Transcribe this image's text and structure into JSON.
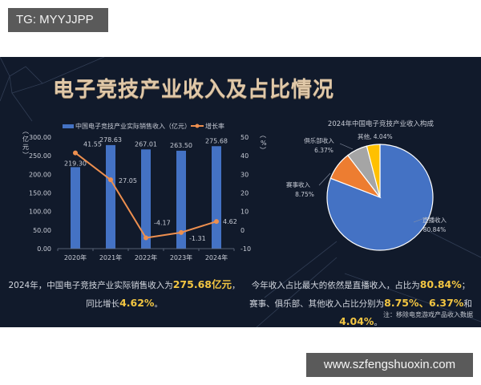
{
  "watermarks": {
    "top": "TG: MYYJJPP",
    "bottom": "www.szfengshuoxin.com"
  },
  "title": "电子竞技产业收入及占比情况",
  "colors": {
    "background": "#111a2b",
    "bar": "#4472c4",
    "line": "#ed8f4f",
    "title": "#e0c8a8",
    "highlight": "#f3c642",
    "pie_live": "#4472c4",
    "pie_event": "#ed7d31",
    "pie_club": "#a5a5a5",
    "pie_other": "#ffc000"
  },
  "chart_data": [
    {
      "type": "bar",
      "title": "",
      "categories": [
        "2020年",
        "2021年",
        "2022年",
        "2023年",
        "2024年"
      ],
      "series": [
        {
          "name": "中国电子竞技产业实际销售收入（亿元）",
          "type": "bar",
          "axis": "left",
          "values": [
            219.3,
            278.63,
            267.01,
            263.5,
            275.68
          ],
          "labels": [
            "219.30",
            "278.63",
            "267.01",
            "263.50",
            "275.68"
          ]
        },
        {
          "name": "增长率",
          "type": "line",
          "axis": "right",
          "values": [
            41.55,
            27.05,
            -4.17,
            -1.31,
            4.62
          ],
          "labels": [
            "41.55",
            "27.05",
            "-4.17",
            "-1.31",
            "4.62"
          ]
        }
      ],
      "ylabel": "（亿元）",
      "y2label": "（%）",
      "ylim": [
        0,
        300
      ],
      "y2lim": [
        -10,
        50
      ],
      "yticks": [
        "0.00",
        "50.00",
        "100.00",
        "150.00",
        "200.00",
        "250.00",
        "300.00"
      ],
      "y2ticks": [
        "-10",
        "0",
        "10",
        "20",
        "30",
        "40",
        "50"
      ],
      "legend_position": "top",
      "grid": false
    },
    {
      "type": "pie",
      "title": "2024年中国电子竞技产业收入构成",
      "labels": [
        "直播收入",
        "赛事收入",
        "俱乐部收入",
        "其他"
      ],
      "values": [
        80.84,
        8.75,
        6.37,
        4.04
      ],
      "display": [
        "80.84%",
        "8.75%",
        "6.37%",
        "4.04%"
      ]
    }
  ],
  "captions": {
    "left": {
      "line1_pre": "2024年，中国电子竞技产业实际销售收入为",
      "line1_hl": "275.68亿元",
      "line1_post": "，",
      "line2_pre": "同比增长",
      "line2_hl": "4.62%",
      "line2_post": "。"
    },
    "right": {
      "line1_pre": "今年收入占比最大的依然是直播收入，占比为",
      "line1_hl": "80.84%",
      "line1_post": "；",
      "line2_pre": "赛事、俱乐部、其他收入占比分别为",
      "line2_hl1": "8.75%、6.37%",
      "line2_mid": "和",
      "line2_hl2": "4.04%",
      "line2_post": "。"
    },
    "note": "注：移除电竞游戏产品收入数据"
  }
}
